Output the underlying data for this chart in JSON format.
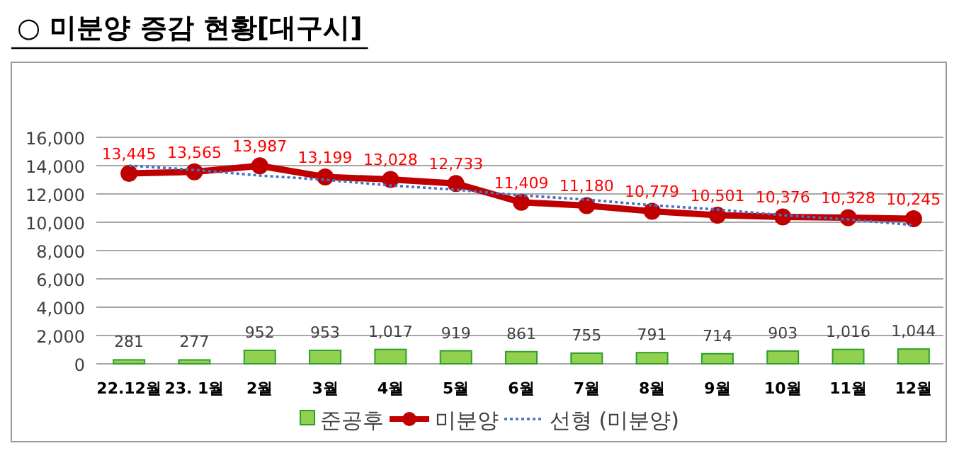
{
  "chart_data": {
    "type": "bar",
    "title": "○ 미분양 증감 현황[대구시]",
    "categories": [
      "22.12월",
      "23. 1월",
      "2월",
      "3월",
      "4월",
      "5월",
      "6월",
      "7월",
      "8월",
      "9월",
      "10월",
      "11월",
      "12월"
    ],
    "series": [
      {
        "name": "준공후",
        "color": "#92d050",
        "values": [
          281,
          277,
          952,
          953,
          1017,
          919,
          861,
          755,
          791,
          714,
          903,
          1016,
          1044
        ],
        "value_labels": [
          "281",
          "277",
          "952",
          "953",
          "1,017",
          "919",
          "861",
          "755",
          "791",
          "714",
          "903",
          "1,016",
          "1,044"
        ]
      },
      {
        "name": "미분양",
        "type": "line",
        "color": "#c00000",
        "marker": "circle",
        "line_style": "solid",
        "values": [
          13445,
          13565,
          13987,
          13199,
          13028,
          12733,
          11409,
          11180,
          10779,
          10501,
          10376,
          10328,
          10245
        ],
        "value_labels": [
          "13,445",
          "13,565",
          "13,987",
          "13,199",
          "13,028",
          "12,733",
          "11,409",
          "11,180",
          "10,779",
          "10,501",
          "10,376",
          "10,328",
          "10,245"
        ]
      },
      {
        "name": "선형 (미분양)",
        "type": "line",
        "color": "#4472c4",
        "marker": "none",
        "line_style": "dotted",
        "values": [
          14000,
          13700,
          13300,
          13000,
          12600,
          12300,
          11900,
          11600,
          11200,
          10900,
          10500,
          10200,
          9800
        ]
      }
    ],
    "ylim": [
      0,
      16000
    ],
    "yticks": [
      {
        "value": 0,
        "label": "0"
      },
      {
        "value": 2000,
        "label": "2,000"
      },
      {
        "value": 4000,
        "label": "4,000"
      },
      {
        "value": 6000,
        "label": "6,000"
      },
      {
        "value": 8000,
        "label": "8,000"
      },
      {
        "value": 10000,
        "label": "10,000"
      },
      {
        "value": 12000,
        "label": "12,000"
      },
      {
        "value": 14000,
        "label": "14,000"
      },
      {
        "value": 16000,
        "label": "16,000"
      }
    ],
    "grid": "y",
    "legend": "bottom"
  }
}
